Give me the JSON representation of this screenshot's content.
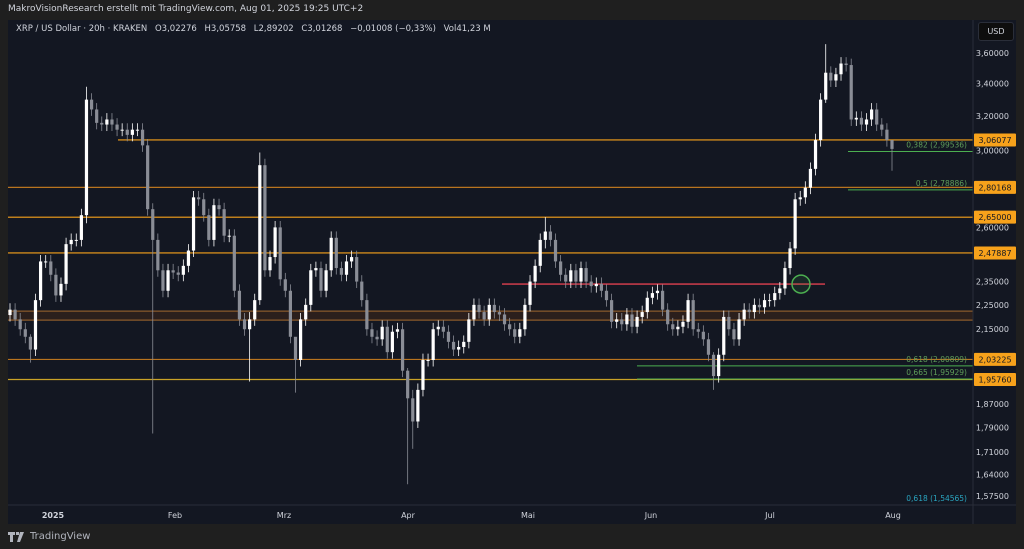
{
  "header": {
    "text": "MakroVisionResearch erstellt mit TradingView.com, Aug 01, 2025 19:25 UTC+2"
  },
  "legend": {
    "symbol": "XRP / US Dollar · 20h · KRAKEN",
    "open": "O3,02276",
    "high": "H3,05758",
    "low": "L2,89202",
    "close": "C3,01268",
    "change": "−0,01008 (−0,33%)",
    "volume": "Vol41,23 M"
  },
  "currency_button": "USD",
  "footer": {
    "brand": "TradingView"
  },
  "colors": {
    "background": "#131722",
    "up": "#ffffff",
    "down": "#8a8d96",
    "level": "#f7a21b",
    "level_dark": "#b8741f",
    "fib": "#4caf50",
    "fib_text": "#5f9e5a",
    "red_line": "#e0404f",
    "cyan": "#2aa5c0"
  },
  "chart_data": {
    "type": "candlestick",
    "timeframe": "20h",
    "y_scale": "log",
    "ylim": [
      1.55,
      3.7
    ],
    "price_axis": {
      "ticks": [
        "3,60000",
        "3,40000",
        "3,20000",
        "3,00000",
        "2,60000",
        "2,35000",
        "2,25000",
        "2,15000",
        "1,87000",
        "1,79000",
        "1,71000",
        "1,64000",
        "1,57500"
      ],
      "values": [
        3.6,
        3.4,
        3.2,
        3.0,
        2.6,
        2.35,
        2.25,
        2.15,
        1.87,
        1.79,
        1.71,
        1.64,
        1.575
      ]
    },
    "time_axis": {
      "labels": [
        "2025",
        "Feb",
        "Mrz",
        "Apr",
        "Mai",
        "Jun",
        "Jul",
        "Aug"
      ]
    },
    "candles_close_high_low": [
      2.23,
      2.19,
      2.15,
      2.12,
      [
        2.07,
        2.13,
        2.02
      ],
      2.27,
      2.44,
      2.44,
      2.38,
      2.29,
      2.34,
      2.52,
      2.54,
      2.54,
      2.66,
      [
        3.3,
        3.38,
        2.62
      ],
      3.24,
      3.16,
      3.15,
      3.18,
      3.15,
      3.12,
      3.12,
      3.09,
      3.12,
      3.12,
      3.03,
      2.69,
      [
        2.54,
        2.72,
        1.77
      ],
      2.4,
      2.31,
      2.4,
      2.39,
      2.38,
      2.42,
      2.49,
      2.75,
      2.74,
      2.66,
      2.54,
      2.71,
      2.69,
      2.56,
      2.56,
      2.31,
      2.19,
      2.15,
      [
        2.19,
        2.22,
        1.95
      ],
      2.27,
      [
        2.92,
        2.99,
        2.25
      ],
      2.4,
      2.46,
      2.6,
      2.36,
      2.31,
      2.12,
      [
        2.03,
        2.1,
        1.91
      ],
      2.19,
      2.25,
      2.4,
      2.41,
      2.31,
      2.4,
      2.55,
      2.41,
      2.38,
      2.44,
      2.46,
      2.35,
      2.27,
      2.15,
      2.12,
      2.11,
      2.16,
      2.06,
      2.14,
      2.15,
      1.99,
      [
        1.89,
        2.0,
        1.61
      ],
      [
        1.81,
        1.92,
        1.72
      ],
      1.92,
      2.03,
      2.03,
      2.15,
      2.16,
      2.14,
      2.1,
      2.07,
      2.08,
      2.1,
      2.19,
      2.25,
      2.22,
      2.19,
      2.25,
      2.22,
      2.21,
      2.17,
      2.15,
      2.12,
      2.15,
      2.25,
      2.35,
      2.42,
      2.54,
      [
        2.58,
        2.65,
        2.5
      ],
      2.54,
      2.44,
      2.38,
      2.35,
      2.4,
      2.35,
      2.41,
      2.35,
      2.33,
      2.34,
      2.31,
      2.27,
      2.18,
      2.19,
      2.17,
      2.21,
      2.16,
      2.2,
      2.22,
      2.28,
      2.3,
      2.31,
      2.23,
      2.17,
      2.15,
      2.16,
      2.18,
      2.27,
      2.15,
      2.14,
      2.11,
      2.05,
      [
        1.97,
        2.06,
        1.92
      ],
      2.05,
      2.2,
      2.15,
      2.11,
      2.19,
      2.23,
      2.22,
      2.25,
      2.24,
      2.27,
      2.27,
      2.3,
      2.32,
      2.41,
      2.5,
      2.74,
      2.75,
      2.8,
      2.9,
      3.06,
      3.3,
      [
        3.47,
        3.66,
        3.28
      ],
      3.42,
      3.46,
      3.53,
      3.52,
      3.18,
      3.19,
      3.15,
      3.18,
      3.24,
      3.15,
      3.12,
      3.06,
      [
        3.01,
        3.06,
        2.89
      ]
    ],
    "levels": [
      {
        "id": "l1",
        "price": 3.06077,
        "label": "3,06077",
        "color": "#f7a21b"
      },
      {
        "id": "l2",
        "price": 2.80168,
        "label": "2,80168",
        "color": "#b8741f"
      },
      {
        "id": "l3",
        "price": 2.65,
        "label": "2,65000",
        "color": "#f7a21b"
      },
      {
        "id": "l4",
        "price": 2.47887,
        "label": "2,47887",
        "color": "#f7a21b"
      },
      {
        "id": "l5",
        "price": 2.03225,
        "label": "2,03225",
        "color": "#b8741f"
      },
      {
        "id": "l6",
        "price": 1.9576,
        "label": "1,95760",
        "color": "#c9a227"
      }
    ],
    "zone": {
      "top": 2.224,
      "bottom": 2.187
    },
    "resistance_line": {
      "price": 2.339
    },
    "breakout_marker": {
      "price": 2.339
    },
    "fib_levels": [
      {
        "id": "f1",
        "label": "0,382 (2,99536)",
        "price": 2.99536,
        "line": true
      },
      {
        "id": "f2",
        "label": "0,5 (2,78886)",
        "price": 2.78886,
        "line": true
      },
      {
        "id": "f3",
        "label": "0,618 (2,00809)",
        "price": 2.00809,
        "line": true
      },
      {
        "id": "f4",
        "label": "0,665 (1,95929)",
        "price": 1.95929,
        "line": true
      },
      {
        "id": "f5",
        "label": "0,618 (1,54565)",
        "price": 1.54565,
        "line": false
      }
    ]
  }
}
